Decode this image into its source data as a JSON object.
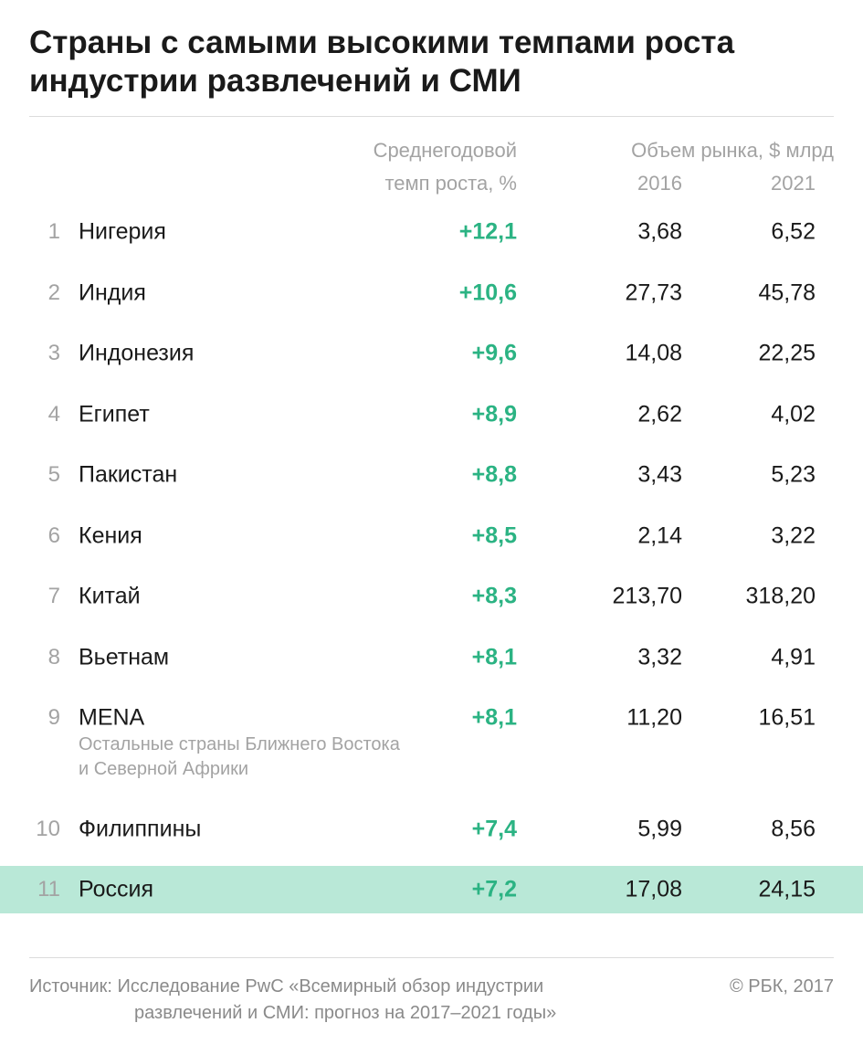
{
  "chart_data": {
    "type": "table",
    "title": "Страны с самыми высокими темпами роста индустрии развлечений и СМИ",
    "columns": {
      "growth_line1": "Среднегодовой",
      "growth_line2": "темп роста, %",
      "market_header": "Объем рынка, $ млрд",
      "year1": "2016",
      "year2": "2021"
    },
    "rows": [
      {
        "rank": "1",
        "country": "Нигерия",
        "growth": "+12,1",
        "v2016": "3,68",
        "v2021": "6,52"
      },
      {
        "rank": "2",
        "country": "Индия",
        "growth": "+10,6",
        "v2016": "27,73",
        "v2021": "45,78"
      },
      {
        "rank": "3",
        "country": "Индонезия",
        "growth": "+9,6",
        "v2016": "14,08",
        "v2021": "22,25"
      },
      {
        "rank": "4",
        "country": "Египет",
        "growth": "+8,9",
        "v2016": "2,62",
        "v2021": "4,02"
      },
      {
        "rank": "5",
        "country": "Пакистан",
        "growth": "+8,8",
        "v2016": "3,43",
        "v2021": "5,23"
      },
      {
        "rank": "6",
        "country": "Кения",
        "growth": "+8,5",
        "v2016": "2,14",
        "v2021": "3,22"
      },
      {
        "rank": "7",
        "country": "Китай",
        "growth": "+8,3",
        "v2016": "213,70",
        "v2021": "318,20"
      },
      {
        "rank": "8",
        "country": "Вьетнам",
        "growth": "+8,1",
        "v2016": "3,32",
        "v2021": "4,91"
      },
      {
        "rank": "9",
        "country": "MENA",
        "growth": "+8,1",
        "v2016": "11,20",
        "v2021": "16,51"
      },
      {
        "rank": "10",
        "country": "Филиппины",
        "growth": "+7,4",
        "v2016": "5,99",
        "v2021": "8,56"
      },
      {
        "rank": "11",
        "country": "Россия",
        "growth": "+7,2",
        "v2016": "17,08",
        "v2021": "24,15",
        "highlight": true
      }
    ],
    "mena_note": "Остальные страны Ближнего Востока и Северной Африки",
    "source_line1": "Источник: Исследование PwC «Всемирный обзор индустрии",
    "source_line2": "развлечений и СМИ: прогноз на 2017–2021 годы»",
    "copyright": "© РБК, 2017"
  },
  "colors": {
    "growth": "#2bb383",
    "highlight": "#b9e8d7",
    "muted": "#a3a3a3"
  }
}
